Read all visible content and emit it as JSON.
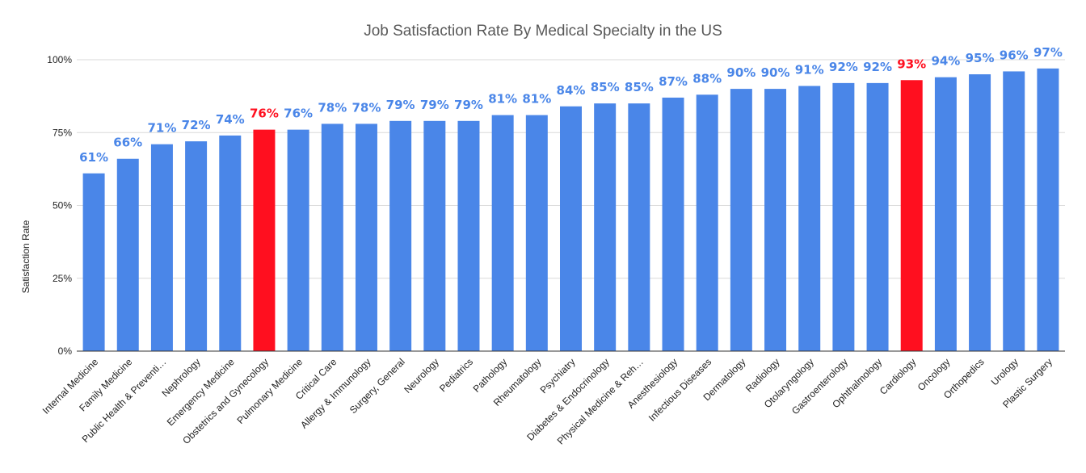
{
  "chart_data": {
    "type": "bar",
    "title": "Job Satisfaction Rate By Medical Specialty in the US",
    "xlabel": "",
    "ylabel": "Satisfaction Rate",
    "ylim": [
      0,
      100
    ],
    "yticks": [
      "0%",
      "25%",
      "50%",
      "75%",
      "100%"
    ],
    "ytick_values": [
      0,
      25,
      50,
      75,
      100
    ],
    "grid": true,
    "categories": [
      "Internal Medicine",
      "Family Medicine",
      "Public Health & Preventi…",
      "Nephrology",
      "Emergency Medicine",
      "Obstetrics and Gynecology",
      "Pulmonary Medicine",
      "Critical Care",
      "Allergy & Immunology",
      "Surgery, General",
      "Neurology",
      "Pediatrics",
      "Pathology",
      "Rheumatology",
      "Psychiatry",
      "Diabetes & Endocrinology",
      "Physical Medicine & Reh…",
      "Anesthesiology",
      "Infectious Diseases",
      "Dermatology",
      "Radiology",
      "Otolaryngology",
      "Gastroenterology",
      "Ophthalmology",
      "Cardiology",
      "Oncology",
      "Orthopedics",
      "Urology",
      "Plastic Surgery"
    ],
    "values": [
      61,
      66,
      71,
      72,
      74,
      76,
      76,
      78,
      78,
      79,
      79,
      79,
      81,
      81,
      84,
      85,
      85,
      87,
      88,
      90,
      90,
      91,
      92,
      92,
      93,
      94,
      95,
      96,
      97
    ],
    "data_labels": [
      "61%",
      "66%",
      "71%",
      "72%",
      "74%",
      "76%",
      "76%",
      "78%",
      "78%",
      "79%",
      "79%",
      "79%",
      "81%",
      "81%",
      "84%",
      "85%",
      "85%",
      "87%",
      "88%",
      "90%",
      "90%",
      "91%",
      "92%",
      "92%",
      "93%",
      "94%",
      "95%",
      "96%",
      "97%"
    ],
    "highlighted": [
      "Obstetrics and Gynecology",
      "Cardiology"
    ],
    "colors": {
      "default": "#4a86e8",
      "highlight": "#ff0f1f",
      "label_default": "#4a86e8",
      "label_highlight": "#ff0f1f"
    }
  }
}
